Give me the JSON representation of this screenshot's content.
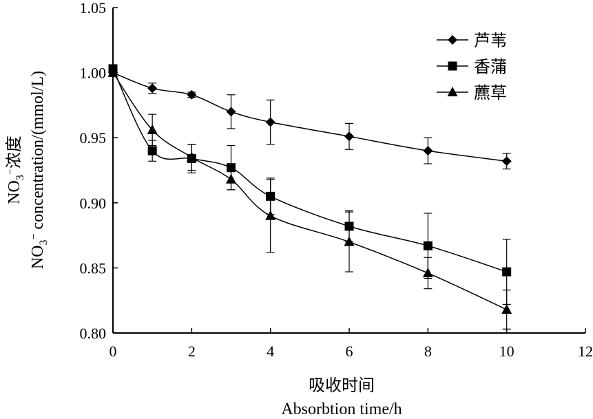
{
  "chart_data": {
    "type": "line",
    "x": [
      0,
      1,
      2,
      3,
      4,
      6,
      8,
      10
    ],
    "series": [
      {
        "name": "芦苇",
        "marker": "diamond",
        "values": [
          1.0,
          0.988,
          0.983,
          0.97,
          0.962,
          0.951,
          0.94,
          0.932
        ],
        "errors": [
          0.003,
          0.004,
          0.002,
          0.013,
          0.017,
          0.01,
          0.01,
          0.006
        ]
      },
      {
        "name": "香蒲",
        "marker": "square",
        "values": [
          1.003,
          0.94,
          0.934,
          0.927,
          0.905,
          0.882,
          0.867,
          0.847
        ],
        "errors": [
          0.003,
          0.008,
          0.011,
          0.017,
          0.014,
          0.012,
          0.025,
          0.025
        ]
      },
      {
        "name": "藨草",
        "marker": "triangle",
        "values": [
          1.0,
          0.956,
          0.935,
          0.918,
          0.89,
          0.87,
          0.846,
          0.818
        ],
        "errors": [
          0.003,
          0.012,
          0.01,
          0.008,
          0.028,
          0.023,
          0.012,
          0.015
        ]
      }
    ],
    "xlim": [
      0,
      12
    ],
    "ylim": [
      0.8,
      1.05
    ],
    "xticks": [
      "0",
      "2",
      "4",
      "6",
      "8",
      "10",
      "12"
    ],
    "yticks": [
      "0.80",
      "0.85",
      "0.90",
      "0.95",
      "1.00",
      "1.05"
    ],
    "xlabel_cn": "吸收时间",
    "xlabel_en": "Absorbtion time/h",
    "ylabel_cn": "浓度",
    "ylabel_en": "concentration/(mmol/L)",
    "ylabel_species": "NO",
    "ylabel_sub": "3",
    "ylabel_sup": "−",
    "legend_position": "top-right",
    "grid": false
  }
}
